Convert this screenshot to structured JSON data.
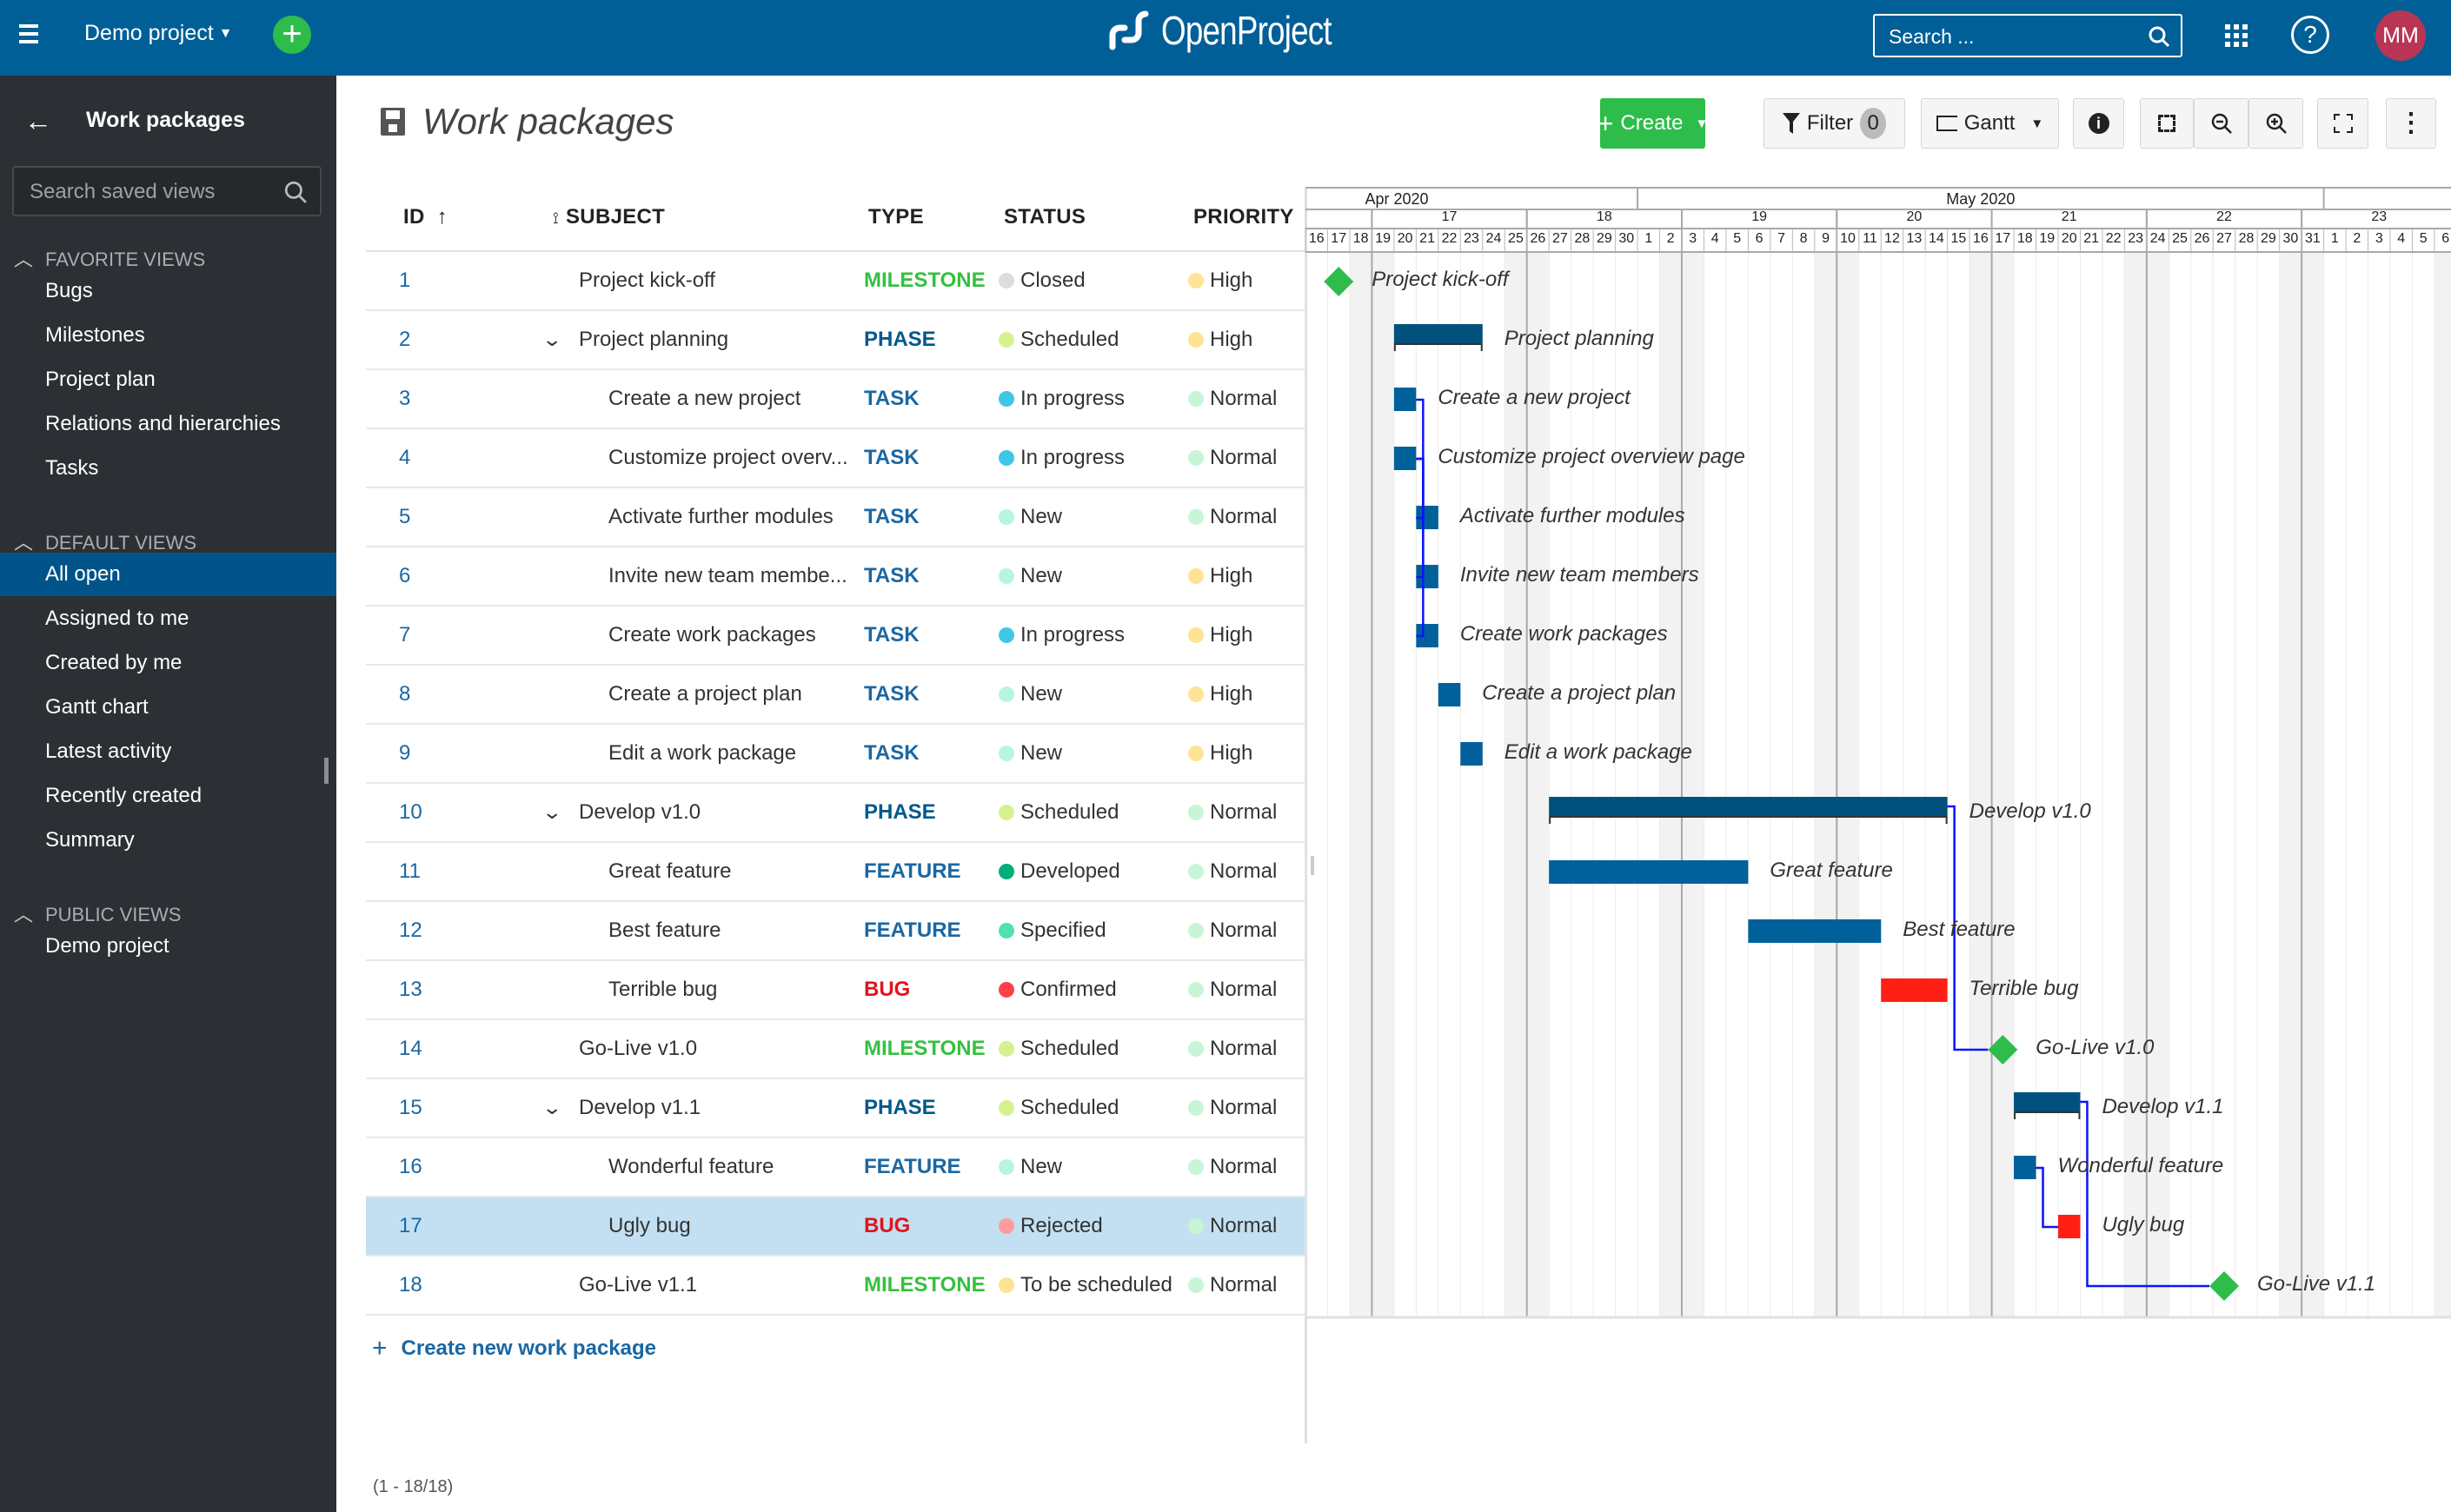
{
  "topbar": {
    "project": "Demo project",
    "logo": "OpenProject",
    "search_placeholder": "Search ...",
    "avatar": "MM",
    "colors": {
      "bar": "#015f97",
      "add": "#2ebd4b",
      "avatar": "#b83556"
    }
  },
  "sidebar": {
    "title": "Work packages",
    "search_placeholder": "Search saved views",
    "sections": [
      {
        "label": "FAVORITE VIEWS",
        "items": [
          "Bugs",
          "Milestones",
          "Project plan",
          "Relations and hierarchies",
          "Tasks"
        ]
      },
      {
        "label": "DEFAULT VIEWS",
        "items": [
          "All open",
          "Assigned to me",
          "Created by me",
          "Gantt chart",
          "Latest activity",
          "Recently created",
          "Summary"
        ]
      },
      {
        "label": "PUBLIC VIEWS",
        "items": [
          "Demo project"
        ]
      }
    ],
    "active": "All open"
  },
  "page": {
    "title": "Work packages",
    "create_label": "Create",
    "filter_label": "Filter",
    "filter_count": "0",
    "view_label": "Gantt",
    "create_new": "Create new work package",
    "pagination": "(1 - 18/18)"
  },
  "columns": {
    "id": "ID",
    "subject": "SUBJECT",
    "type": "TYPE",
    "status": "STATUS",
    "priority": "PRIORITY"
  },
  "type_colors": {
    "MILESTONE": "#35c03f",
    "PHASE": "#00598c",
    "TASK": "#1a67a3",
    "FEATURE": "#1a67a3",
    "BUG": "#e3121b"
  },
  "status_colors": {
    "Closed": "#dbdee1",
    "Scheduled": "#d6f28f",
    "In progress": "#3fc8e6",
    "New": "#b6f5e3",
    "Developed": "#00b07a",
    "Specified": "#4fe0b6",
    "Confirmed": "#ff4049",
    "Rejected": "#ff9c9c",
    "To be scheduled": "#ffe394"
  },
  "priority_colors": {
    "High": "#ffe394",
    "Normal": "#c8f5d6"
  },
  "rows": [
    {
      "id": "1",
      "subject": "Project kick-off",
      "full": "Project kick-off",
      "level": 0,
      "expandable": false,
      "type": "MILESTONE",
      "status": "Closed",
      "priority": "High",
      "start": "2020-04-17",
      "end": "2020-04-17"
    },
    {
      "id": "2",
      "subject": "Project planning",
      "full": "Project planning",
      "level": 0,
      "expandable": true,
      "type": "PHASE",
      "status": "Scheduled",
      "priority": "High",
      "start": "2020-04-20",
      "end": "2020-04-23"
    },
    {
      "id": "3",
      "subject": "Create a new project",
      "full": "Create a new project",
      "level": 1,
      "expandable": false,
      "type": "TASK",
      "status": "In progress",
      "priority": "Normal",
      "start": "2020-04-20",
      "end": "2020-04-20"
    },
    {
      "id": "4",
      "subject": "Customize project overv...",
      "full": "Customize project overview page",
      "level": 1,
      "expandable": false,
      "type": "TASK",
      "status": "In progress",
      "priority": "Normal",
      "start": "2020-04-20",
      "end": "2020-04-20"
    },
    {
      "id": "5",
      "subject": "Activate further modules",
      "full": "Activate further modules",
      "level": 1,
      "expandable": false,
      "type": "TASK",
      "status": "New",
      "priority": "Normal",
      "start": "2020-04-21",
      "end": "2020-04-21"
    },
    {
      "id": "6",
      "subject": "Invite new team membe...",
      "full": "Invite new team members",
      "level": 1,
      "expandable": false,
      "type": "TASK",
      "status": "New",
      "priority": "High",
      "start": "2020-04-21",
      "end": "2020-04-21"
    },
    {
      "id": "7",
      "subject": "Create work packages",
      "full": "Create work packages",
      "level": 1,
      "expandable": false,
      "type": "TASK",
      "status": "In progress",
      "priority": "High",
      "start": "2020-04-21",
      "end": "2020-04-21"
    },
    {
      "id": "8",
      "subject": "Create a project plan",
      "full": "Create a project plan",
      "level": 1,
      "expandable": false,
      "type": "TASK",
      "status": "New",
      "priority": "High",
      "start": "2020-04-22",
      "end": "2020-04-22"
    },
    {
      "id": "9",
      "subject": "Edit a work package",
      "full": "Edit a work package",
      "level": 1,
      "expandable": false,
      "type": "TASK",
      "status": "New",
      "priority": "High",
      "start": "2020-04-23",
      "end": "2020-04-23"
    },
    {
      "id": "10",
      "subject": "Develop v1.0",
      "full": "Develop v1.0",
      "level": 0,
      "expandable": true,
      "type": "PHASE",
      "status": "Scheduled",
      "priority": "Normal",
      "start": "2020-04-27",
      "end": "2020-05-14"
    },
    {
      "id": "11",
      "subject": "Great feature",
      "full": "Great feature",
      "level": 1,
      "expandable": false,
      "type": "FEATURE",
      "status": "Developed",
      "priority": "Normal",
      "start": "2020-04-27",
      "end": "2020-05-05"
    },
    {
      "id": "12",
      "subject": "Best feature",
      "full": "Best feature",
      "level": 1,
      "expandable": false,
      "type": "FEATURE",
      "status": "Specified",
      "priority": "Normal",
      "start": "2020-05-06",
      "end": "2020-05-11"
    },
    {
      "id": "13",
      "subject": "Terrible bug",
      "full": "Terrible bug",
      "level": 1,
      "expandable": false,
      "type": "BUG",
      "status": "Confirmed",
      "priority": "Normal",
      "start": "2020-05-12",
      "end": "2020-05-14"
    },
    {
      "id": "14",
      "subject": "Go-Live v1.0",
      "full": "Go-Live v1.0",
      "level": 0,
      "expandable": false,
      "type": "MILESTONE",
      "status": "Scheduled",
      "priority": "Normal",
      "start": "2020-05-17",
      "end": "2020-05-17"
    },
    {
      "id": "15",
      "subject": "Develop v1.1",
      "full": "Develop v1.1",
      "level": 0,
      "expandable": true,
      "type": "PHASE",
      "status": "Scheduled",
      "priority": "Normal",
      "start": "2020-05-18",
      "end": "2020-05-20"
    },
    {
      "id": "16",
      "subject": "Wonderful feature",
      "full": "Wonderful feature",
      "level": 1,
      "expandable": false,
      "type": "FEATURE",
      "status": "New",
      "priority": "Normal",
      "start": "2020-05-18",
      "end": "2020-05-18"
    },
    {
      "id": "17",
      "subject": "Ugly bug",
      "full": "Ugly bug",
      "level": 1,
      "expandable": false,
      "type": "BUG",
      "status": "Rejected",
      "priority": "Normal",
      "start": "2020-05-20",
      "end": "2020-05-20",
      "selected": true
    },
    {
      "id": "18",
      "subject": "Go-Live v1.1",
      "full": "Go-Live v1.1",
      "level": 0,
      "expandable": false,
      "type": "MILESTONE",
      "status": "To be scheduled",
      "priority": "Normal",
      "start": "2020-05-27",
      "end": "2020-05-27"
    }
  ],
  "gantt": {
    "first_day": "2020-04-16",
    "days": 52,
    "months": [
      "Apr 2020",
      "May 2020",
      ""
    ],
    "weeks": [
      "17",
      "18",
      "19",
      "20",
      "21",
      "22",
      "23"
    ],
    "relations": [
      [
        3,
        5
      ],
      [
        4,
        5
      ],
      [
        4,
        6
      ],
      [
        4,
        7
      ],
      [
        10,
        14
      ],
      [
        16,
        17
      ],
      [
        15,
        18
      ]
    ],
    "colors": {
      "phase": "#01517c",
      "task": "#00609a",
      "bug": "#ff1f14",
      "milestone": "#2ebd4b",
      "relation": "#0a14ff"
    }
  }
}
